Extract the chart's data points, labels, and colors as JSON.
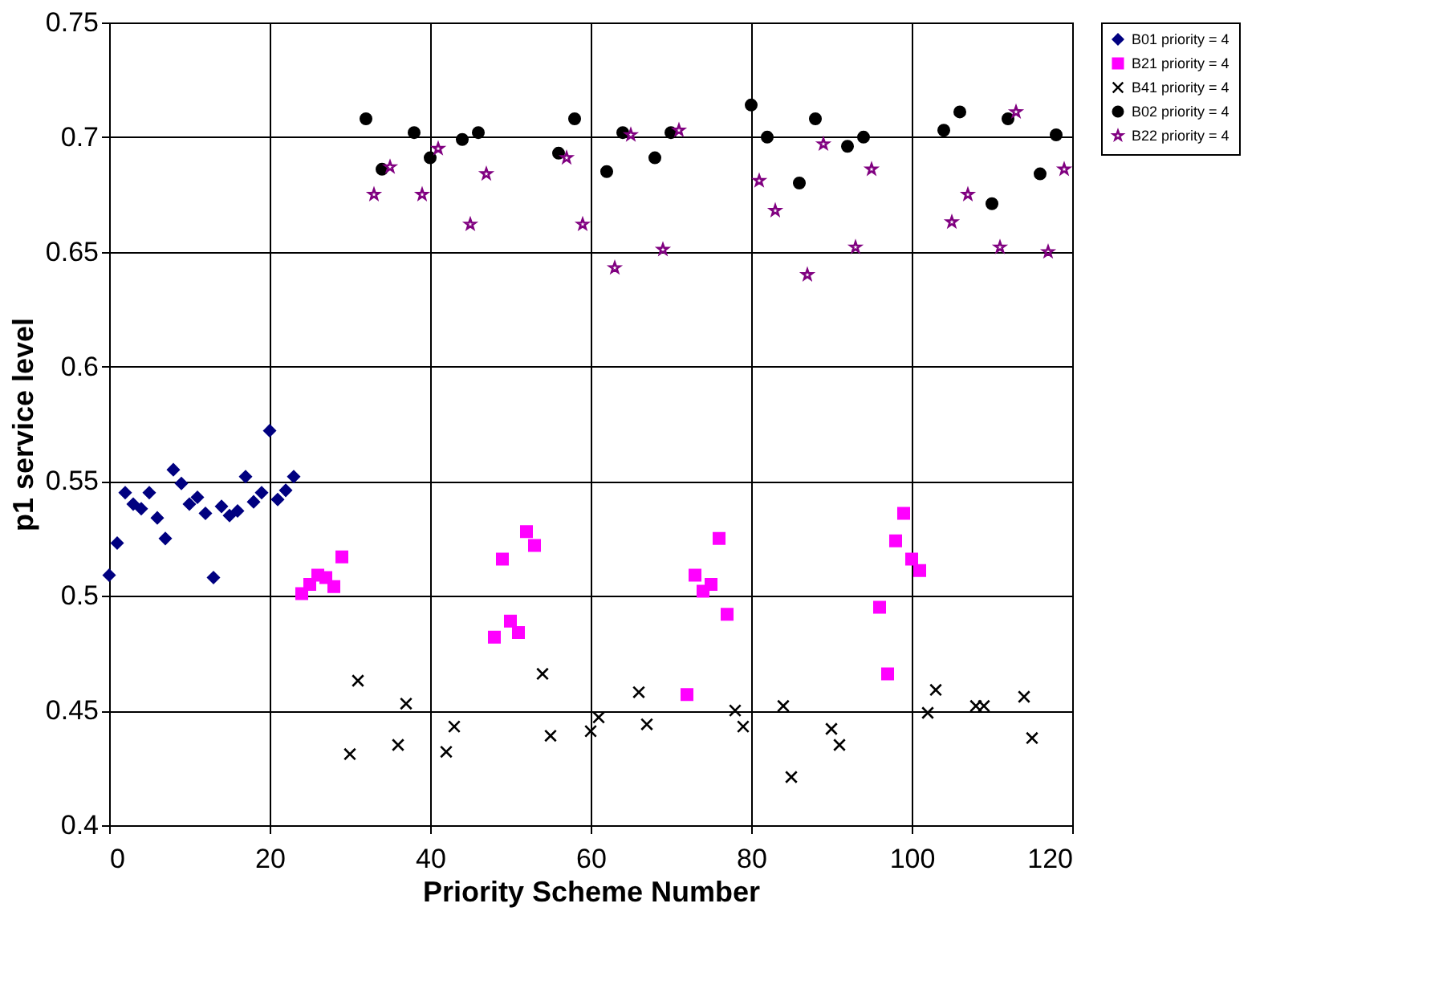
{
  "chart_data": {
    "type": "scatter",
    "xlabel": "Priority Scheme Number",
    "ylabel": "p1 service level",
    "xlim": [
      0,
      120
    ],
    "xticks": [
      0,
      20,
      40,
      60,
      80,
      100,
      120
    ],
    "ylim": [
      0.4,
      0.75
    ],
    "yticks": [
      0.4,
      0.45,
      0.5,
      0.55,
      0.6,
      0.65,
      0.7,
      0.75
    ],
    "grid": true,
    "legend": "right",
    "series": [
      {
        "name": "B01 priority = 4",
        "color": "#000080",
        "marker": "diamond",
        "x": [
          0,
          1,
          2,
          3,
          4,
          5,
          6,
          7,
          8,
          9,
          10,
          11,
          12,
          13,
          14,
          15,
          16,
          17,
          18,
          19,
          20,
          21,
          22,
          23
        ],
        "values": [
          0.509,
          0.523,
          0.545,
          0.54,
          0.538,
          0.545,
          0.534,
          0.525,
          0.555,
          0.549,
          0.54,
          0.543,
          0.536,
          0.508,
          0.539,
          0.535,
          0.537,
          0.552,
          0.541,
          0.545,
          0.572,
          0.542,
          0.546,
          0.552
        ]
      },
      {
        "name": "B21 priority = 4",
        "color": "#ff00ff",
        "marker": "square",
        "x": [
          24,
          25,
          26,
          27,
          28,
          29,
          48,
          49,
          50,
          51,
          52,
          53,
          72,
          73,
          74,
          75,
          76,
          77,
          96,
          97,
          98,
          99,
          100,
          101
        ],
        "values": [
          0.501,
          0.505,
          0.509,
          0.508,
          0.504,
          0.517,
          0.482,
          0.516,
          0.489,
          0.484,
          0.528,
          0.522,
          0.457,
          0.509,
          0.502,
          0.505,
          0.525,
          0.492,
          0.495,
          0.466,
          0.524,
          0.536,
          0.516,
          0.511
        ]
      },
      {
        "name": "B41 priority = 4",
        "color": "#000000",
        "marker": "cross",
        "x": [
          30,
          31,
          36,
          37,
          42,
          43,
          54,
          55,
          60,
          61,
          66,
          67,
          78,
          79,
          84,
          85,
          90,
          91,
          102,
          103,
          108,
          109,
          114,
          115
        ],
        "values": [
          0.431,
          0.463,
          0.435,
          0.453,
          0.432,
          0.443,
          0.466,
          0.439,
          0.441,
          0.447,
          0.458,
          0.444,
          0.45,
          0.443,
          0.452,
          0.421,
          0.442,
          0.435,
          0.449,
          0.459,
          0.452,
          0.452,
          0.456,
          0.438
        ]
      },
      {
        "name": "B02 priority = 4",
        "color": "#000000",
        "marker": "circle",
        "x": [
          32,
          34,
          38,
          40,
          44,
          46,
          56,
          58,
          62,
          64,
          68,
          70,
          80,
          82,
          86,
          88,
          92,
          94,
          104,
          106,
          110,
          112,
          116,
          118
        ],
        "values": [
          0.708,
          0.686,
          0.702,
          0.691,
          0.699,
          0.702,
          0.693,
          0.708,
          0.685,
          0.702,
          0.691,
          0.702,
          0.714,
          0.7,
          0.68,
          0.708,
          0.696,
          0.7,
          0.703,
          0.711,
          0.671,
          0.708,
          0.684,
          0.701
        ]
      },
      {
        "name": "B22 priority = 4",
        "color": "#800080",
        "marker": "star",
        "x": [
          33,
          35,
          39,
          41,
          45,
          47,
          57,
          59,
          63,
          65,
          69,
          71,
          81,
          83,
          87,
          89,
          93,
          95,
          105,
          107,
          111,
          113,
          117,
          119
        ],
        "values": [
          0.675,
          0.687,
          0.675,
          0.695,
          0.662,
          0.684,
          0.691,
          0.662,
          0.643,
          0.701,
          0.651,
          0.703,
          0.681,
          0.668,
          0.64,
          0.697,
          0.652,
          0.686,
          0.663,
          0.675,
          0.652,
          0.711,
          0.65,
          0.686
        ]
      }
    ]
  }
}
